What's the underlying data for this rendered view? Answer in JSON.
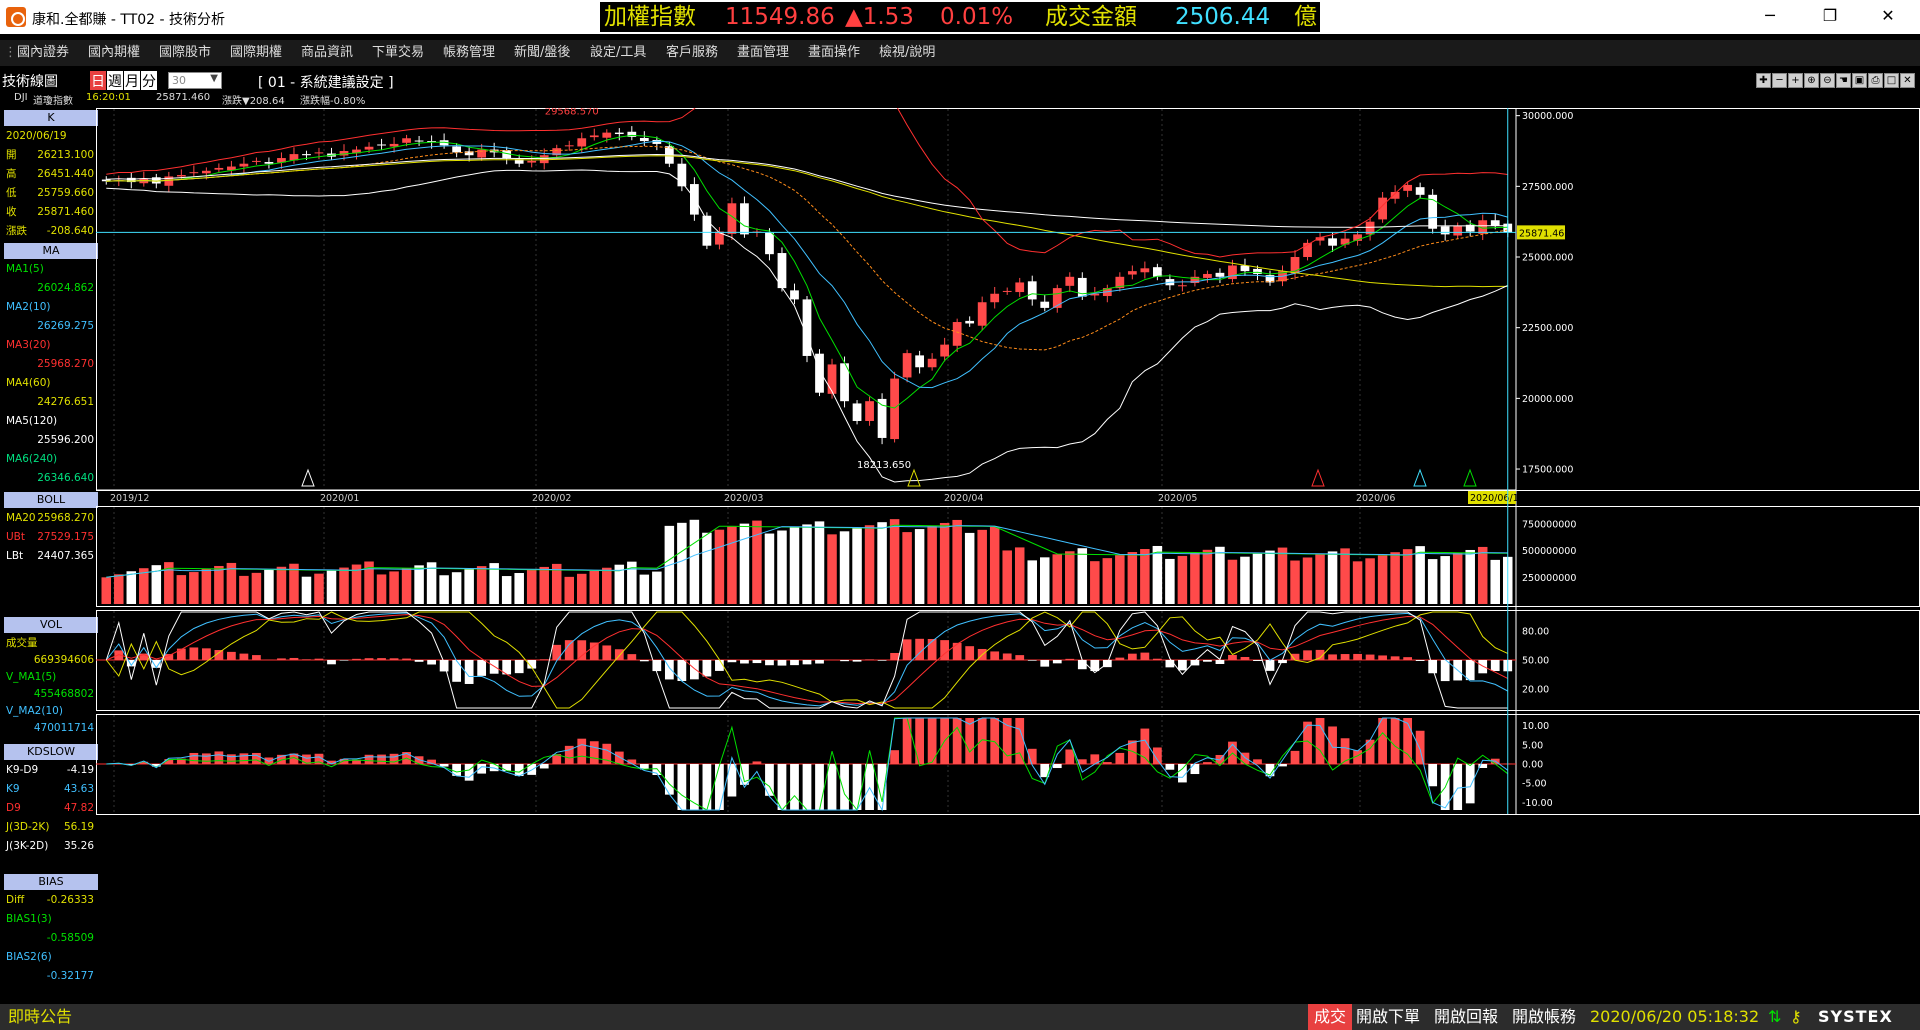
{
  "window": {
    "title": "康和.全都賺 - TT02 - 技術分析",
    "minimize": "─",
    "maximize": "❐",
    "close": "✕"
  },
  "ticker": {
    "label": "加權指數",
    "value": "11549.86",
    "change": "▲1.53",
    "pct": "0.01%",
    "volume_label": "成交金額",
    "volume_value": "2506.44",
    "unit": "億"
  },
  "menu": [
    "國內證券",
    "國內期權",
    "國際股市",
    "國際期權",
    "商品資訊",
    "下單交易",
    "帳務管理",
    "新聞/盤後",
    "設定/工具",
    "客戶服務",
    "畫面管理",
    "畫面操作",
    "檢視/說明"
  ],
  "toolbar": {
    "title": "技術線圖",
    "periods": [
      "日",
      "週",
      "月",
      "分"
    ],
    "period_value": "30",
    "setting": "[ 01 - 系統建議設定 ]",
    "symbol": "DJI",
    "symbol_name": "道瓊指數",
    "time": "16:20:01",
    "price": "25871.460",
    "change": "漲跌▼208.64",
    "change_pct": "漲跌幅-0.80%"
  },
  "panel": {
    "k_header": "K",
    "date": "2020/06/19",
    "ohlc": [
      {
        "label": "開",
        "value": "26213.100"
      },
      {
        "label": "高",
        "value": "26451.440"
      },
      {
        "label": "低",
        "value": "25759.660"
      },
      {
        "label": "收",
        "value": "25871.460"
      },
      {
        "label": "漲跌",
        "value": "-208.640"
      }
    ],
    "ma_header": "MA",
    "ma": [
      {
        "label": "MA1(5)",
        "value": "26024.862",
        "color": "#00e000"
      },
      {
        "label": "MA2(10)",
        "value": "26269.275",
        "color": "#40c0ff"
      },
      {
        "label": "MA3(20)",
        "value": "25968.270",
        "color": "#ff3030"
      },
      {
        "label": "MA4(60)",
        "value": "24276.651",
        "color": "#e0e000"
      },
      {
        "label": "MA5(120)",
        "value": "25596.200",
        "color": "#ffffff"
      },
      {
        "label": "MA6(240)",
        "value": "26346.640",
        "color": "#00e080"
      }
    ],
    "boll_header": "BOLL",
    "boll": [
      {
        "label": "MA20",
        "value": "25968.270",
        "color": "#e0e000"
      },
      {
        "label": "UBt",
        "value": "27529.175",
        "color": "#ff3030"
      },
      {
        "label": "LBt",
        "value": "24407.365",
        "color": "#ffffff"
      }
    ],
    "vol_header": "VOL",
    "vol": [
      {
        "label": "成交量",
        "value": "",
        "color": "#e0e000"
      },
      {
        "label": "",
        "value": "669394606",
        "color": "#e0e000"
      },
      {
        "label": "V_MA1(5)",
        "value": "",
        "color": "#00e000"
      },
      {
        "label": "",
        "value": "455468802",
        "color": "#00e000"
      },
      {
        "label": "V_MA2(10)",
        "value": "",
        "color": "#40c0ff"
      },
      {
        "label": "",
        "value": "470011714",
        "color": "#40c0ff"
      }
    ],
    "kd_header": "KDSLOW",
    "kd": [
      {
        "label": "K9-D9",
        "value": "-4.19",
        "color": "#ffffff"
      },
      {
        "label": "K9",
        "value": "43.63",
        "color": "#40c0ff"
      },
      {
        "label": "D9",
        "value": "47.82",
        "color": "#ff3030"
      },
      {
        "label": "J(3D-2K)",
        "value": "56.19",
        "color": "#e0e000"
      },
      {
        "label": "J(3K-2D)",
        "value": "35.26",
        "color": "#ffffff"
      }
    ],
    "bias_header": "BIAS",
    "bias": [
      {
        "label": "Diff",
        "value": "-0.26333",
        "color": "#e0e000"
      },
      {
        "label": "BIAS1(3)",
        "value": "",
        "color": "#00e000"
      },
      {
        "label": "",
        "value": "-0.58509",
        "color": "#00e000"
      },
      {
        "label": "BIAS2(6)",
        "value": "",
        "color": "#40c0ff"
      },
      {
        "label": "",
        "value": "-0.32177",
        "color": "#40c0ff"
      }
    ]
  },
  "chart_data": {
    "type": "candlestick",
    "symbol": "DJI",
    "x_axis_labels": [
      "2019/12",
      "2020/01",
      "2020/02",
      "2020/03",
      "2020/04",
      "2020/05",
      "2020/06",
      "2020/06/19"
    ],
    "price_axis": {
      "ticks": [
        "30000.000",
        "27500.000",
        "25000.000",
        "22500.000",
        "20000.000",
        "17500.000"
      ],
      "ylim": [
        16900,
        30200
      ]
    },
    "last_price_label": "25871.460",
    "annotations": [
      {
        "label": "29568.570",
        "note": "high"
      },
      {
        "label": "18213.650",
        "note": "low"
      }
    ],
    "closes": [
      27680,
      27720,
      27650,
      27780,
      27600,
      27850,
      27900,
      28000,
      28050,
      28150,
      28200,
      28300,
      28400,
      28300,
      28500,
      28640,
      28600,
      28700,
      28550,
      28750,
      28800,
      28900,
      28950,
      29000,
      29200,
      29100,
      29050,
      28950,
      28700,
      28600,
      28800,
      28700,
      28500,
      28300,
      28400,
      28600,
      28850,
      28950,
      29200,
      29300,
      29400,
      29350,
      29250,
      29100,
      29000,
      28300,
      27500,
      26500,
      25400,
      25900,
      26900,
      25800,
      25900,
      25100,
      23900,
      23500,
      21500,
      20200,
      21200,
      19900,
      19200,
      19900,
      18600,
      20700,
      21600,
      21100,
      21400,
      21900,
      22700,
      22650,
      23400,
      23700,
      23800,
      24100,
      23500,
      23200,
      23900,
      24300,
      23600,
      23700,
      23900,
      24300,
      24500,
      24600,
      24300,
      24000,
      24000,
      24300,
      24400,
      24300,
      24700,
      24500,
      24400,
      24100,
      24500,
      25000,
      25500,
      25700,
      25400,
      25650,
      25800,
      26250,
      27100,
      27300,
      27550,
      27200,
      26000,
      25800,
      26100,
      25900,
      26300,
      26100,
      25871
    ],
    "volume_axis": {
      "ticks": [
        "750000000",
        "500000000",
        "250000000"
      ]
    },
    "kd_axis": {
      "ticks": [
        "80.00",
        "50.00",
        "20.00"
      ]
    },
    "bias_axis": {
      "ticks": [
        "10.00",
        "5.00",
        "0.00",
        "-5.00",
        "-10.00"
      ]
    }
  },
  "status": {
    "announce": "即時公告",
    "trade": "成交",
    "open_order": "開啟下單",
    "open_report": "開啟回報",
    "open_account": "開啟帳務",
    "datetime": "2020/06/20 05:18:32",
    "brand": "SYSTEX"
  }
}
